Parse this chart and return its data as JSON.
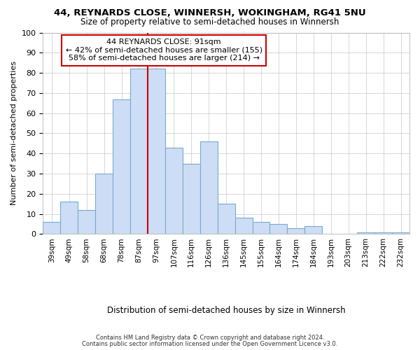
{
  "title": "44, REYNARDS CLOSE, WINNERSH, WOKINGHAM, RG41 5NU",
  "subtitle": "Size of property relative to semi-detached houses in Winnersh",
  "xlabel_dist": "Distribution of semi-detached houses by size in Winnersh",
  "ylabel": "Number of semi-detached properties",
  "footer1": "Contains HM Land Registry data © Crown copyright and database right 2024.",
  "footer2": "Contains public sector information licensed under the Open Government Licence v3.0.",
  "annotation_title": "44 REYNARDS CLOSE: 91sqm",
  "annotation_line2": "← 42% of semi-detached houses are smaller (155)",
  "annotation_line3": "58% of semi-detached houses are larger (214) →",
  "bar_color": "#ccddf5",
  "bar_edge_color": "#7aaad0",
  "vline_color": "#cc0000",
  "annotation_box_edgecolor": "#cc0000",
  "background_color": "#ffffff",
  "ax_background_color": "#ffffff",
  "grid_color": "#c8c8c8",
  "categories": [
    "39sqm",
    "49sqm",
    "58sqm",
    "68sqm",
    "78sqm",
    "87sqm",
    "97sqm",
    "107sqm",
    "116sqm",
    "126sqm",
    "136sqm",
    "145sqm",
    "155sqm",
    "164sqm",
    "174sqm",
    "184sqm",
    "193sqm",
    "203sqm",
    "213sqm",
    "222sqm",
    "232sqm"
  ],
  "values": [
    6,
    16,
    12,
    30,
    67,
    82,
    82,
    43,
    35,
    46,
    15,
    8,
    6,
    5,
    3,
    4,
    0,
    0,
    1,
    1,
    1
  ],
  "ylim": [
    0,
    100
  ],
  "yticks": [
    0,
    10,
    20,
    30,
    40,
    50,
    60,
    70,
    80,
    90,
    100
  ],
  "vline_x": 5.5
}
